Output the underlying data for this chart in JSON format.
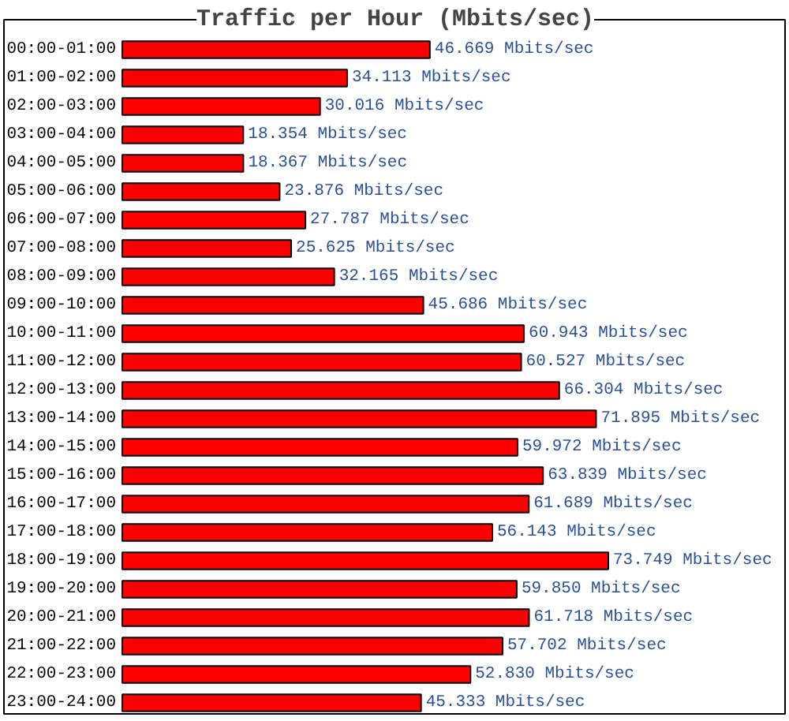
{
  "chart_data": {
    "type": "bar",
    "orientation": "horizontal",
    "title": "Traffic per Hour (Mbits/sec)",
    "categories": [
      "00:00-01:00",
      "01:00-02:00",
      "02:00-03:00",
      "03:00-04:00",
      "04:00-05:00",
      "05:00-06:00",
      "06:00-07:00",
      "07:00-08:00",
      "08:00-09:00",
      "09:00-10:00",
      "10:00-11:00",
      "11:00-12:00",
      "12:00-13:00",
      "13:00-14:00",
      "14:00-15:00",
      "15:00-16:00",
      "16:00-17:00",
      "17:00-18:00",
      "18:00-19:00",
      "19:00-20:00",
      "20:00-21:00",
      "21:00-22:00",
      "22:00-23:00",
      "23:00-24:00"
    ],
    "values": [
      46.669,
      34.113,
      30.016,
      18.354,
      18.367,
      23.876,
      27.787,
      25.625,
      32.165,
      45.686,
      60.943,
      60.527,
      66.304,
      71.895,
      59.972,
      63.839,
      61.689,
      56.143,
      73.749,
      59.85,
      61.718,
      57.702,
      52.83,
      45.333
    ],
    "value_labels": [
      "46.669 Mbits/sec",
      "34.113 Mbits/sec",
      "30.016 Mbits/sec",
      "18.354 Mbits/sec",
      "18.367 Mbits/sec",
      "23.876 Mbits/sec",
      "27.787 Mbits/sec",
      "25.625 Mbits/sec",
      "32.165 Mbits/sec",
      "45.686 Mbits/sec",
      "60.943 Mbits/sec",
      "60.527 Mbits/sec",
      "66.304 Mbits/sec",
      "71.895 Mbits/sec",
      "59.972 Mbits/sec",
      "63.839 Mbits/sec",
      "61.689 Mbits/sec",
      "56.143 Mbits/sec",
      "73.749 Mbits/sec",
      "59.850 Mbits/sec",
      "61.718 Mbits/sec",
      "57.702 Mbits/sec",
      "52.830 Mbits/sec",
      "45.333 Mbits/sec"
    ],
    "color": "#ff0000"
  }
}
